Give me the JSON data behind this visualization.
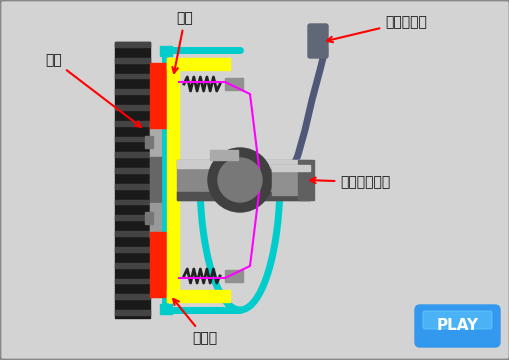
{
  "bg_color": "#d3d3d3",
  "border_color": "#888888",
  "labels": {
    "flywheel": "飛輪",
    "pressure_plate": "壓板",
    "clutch_pedal": "離合器踏板",
    "transmission_shaft": "變速箱輸入軸",
    "friction_disc": "摩擦盤"
  },
  "arrow_color": "#ff0000",
  "teal_color": "#00cccc",
  "yellow_color": "#ffff00",
  "red_color": "#ff2200",
  "magenta_color": "#ff00ff",
  "pedal_color": "#505878",
  "flywheel_outer": "#1a1a1a",
  "flywheel_mid": "#555555",
  "flywheel_light": "#888888",
  "flywheel_hub": "#333333",
  "shaft_light": "#cccccc",
  "shaft_mid": "#888888",
  "shaft_dark": "#505050",
  "hub_dark": "#404040",
  "spring_color": "#222222",
  "gray_tab": "#909090",
  "play_bg": "#3399ee",
  "play_hi": "#66ccff",
  "play_text": "PLAY"
}
